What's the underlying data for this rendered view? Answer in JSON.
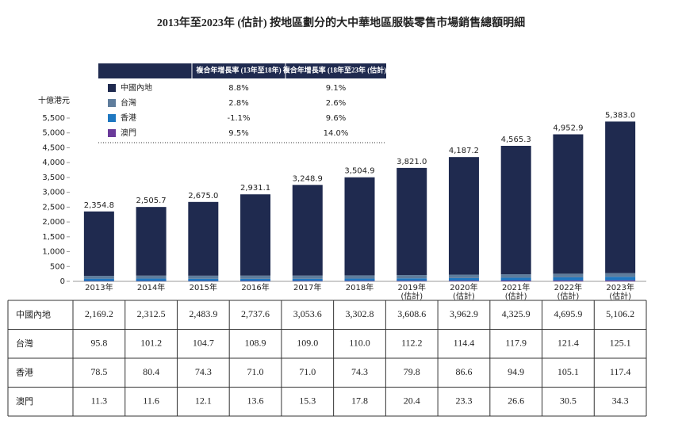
{
  "chart_data": {
    "type": "stacked_bar",
    "title": "2013年至2023年 (估計) 按地區劃分的大中華地區服裝零售市場銷售總額明細",
    "y_axis_label": "十億港元",
    "categories": [
      "2013年",
      "2014年",
      "2015年",
      "2016年",
      "2017年",
      "2018年",
      "2019年(估計)",
      "2020年(估計)",
      "2021年(估計)",
      "2022年(估計)",
      "2023年(估計)"
    ],
    "ylim": [
      0,
      5500
    ],
    "yticks": [
      0,
      {
        "value": 500,
        "label": "500"
      },
      {
        "value": 1000,
        "label": "1,000"
      },
      {
        "value": 1500,
        "label": "1,500"
      },
      {
        "value": 2000,
        "label": "2,000"
      },
      {
        "value": 2500,
        "label": "2,500"
      },
      {
        "value": 3000,
        "label": "3,000"
      },
      {
        "value": 3500,
        "label": "3,500"
      },
      {
        "value": 4000,
        "label": "4,000"
      },
      {
        "value": 4500,
        "label": "4,500"
      },
      {
        "value": 5000,
        "label": "5,000"
      },
      {
        "value": 5500,
        "label": "5,500"
      }
    ],
    "series": [
      {
        "name": "中國內地",
        "color": "#1f2a4f",
        "values": [
          2169.2,
          2312.5,
          2483.9,
          2737.6,
          3053.6,
          3302.8,
          3608.6,
          3962.9,
          4325.9,
          4695.9,
          5106.2
        ],
        "value_labels": [
          "2,169.2",
          "2,312.5",
          "2,483.9",
          "2,737.6",
          "3,053.6",
          "3,302.8",
          "3,608.6",
          "3,962.9",
          "4,325.9",
          "4,695.9",
          "5,106.2"
        ]
      },
      {
        "name": "台灣",
        "color": "#5f7d9c",
        "values": [
          95.8,
          101.2,
          104.7,
          108.9,
          109.0,
          110.0,
          112.2,
          114.4,
          117.9,
          121.4,
          125.1
        ],
        "value_labels": [
          "95.8",
          "101.2",
          "104.7",
          "108.9",
          "109.0",
          "110.0",
          "112.2",
          "114.4",
          "117.9",
          "121.4",
          "125.1"
        ]
      },
      {
        "name": "香港",
        "color": "#1f78c1",
        "values": [
          78.5,
          80.4,
          74.3,
          71.0,
          71.0,
          74.3,
          79.8,
          86.6,
          94.9,
          105.1,
          117.4
        ],
        "value_labels": [
          "78.5",
          "80.4",
          "74.3",
          "71.0",
          "71.0",
          "74.3",
          "79.8",
          "86.6",
          "94.9",
          "105.1",
          "117.4"
        ]
      },
      {
        "name": "澳門",
        "color": "#6a3a9a",
        "values": [
          11.3,
          11.6,
          12.1,
          13.6,
          15.3,
          17.8,
          20.4,
          23.3,
          26.6,
          30.5,
          34.3
        ],
        "value_labels": [
          "11.3",
          "11.6",
          "12.1",
          "13.6",
          "15.3",
          "17.8",
          "20.4",
          "23.3",
          "26.6",
          "30.5",
          "34.3"
        ]
      }
    ],
    "totals": {
      "values": [
        2354.8,
        2505.7,
        2675.0,
        2931.1,
        3248.9,
        3504.9,
        3821.0,
        4187.2,
        4565.3,
        4952.9,
        5383.0
      ],
      "value_labels": [
        "2,354.8",
        "2,505.7",
        "2,675.0",
        "2,931.1",
        "3,248.9",
        "3,504.9",
        "3,821.0",
        "4,187.2",
        "4,565.3",
        "4,952.9",
        "5,383.0"
      ]
    },
    "cagr_table": {
      "headers": [
        "複合年增長率 (13年至18年)",
        "複合年增長率 (18年至23年 (估計))"
      ],
      "rows": [
        [
          "8.8%",
          "9.1%"
        ],
        [
          "2.8%",
          "2.6%"
        ],
        [
          "-1.1%",
          "9.6%"
        ],
        [
          "9.5%",
          "14.0%"
        ]
      ]
    }
  }
}
